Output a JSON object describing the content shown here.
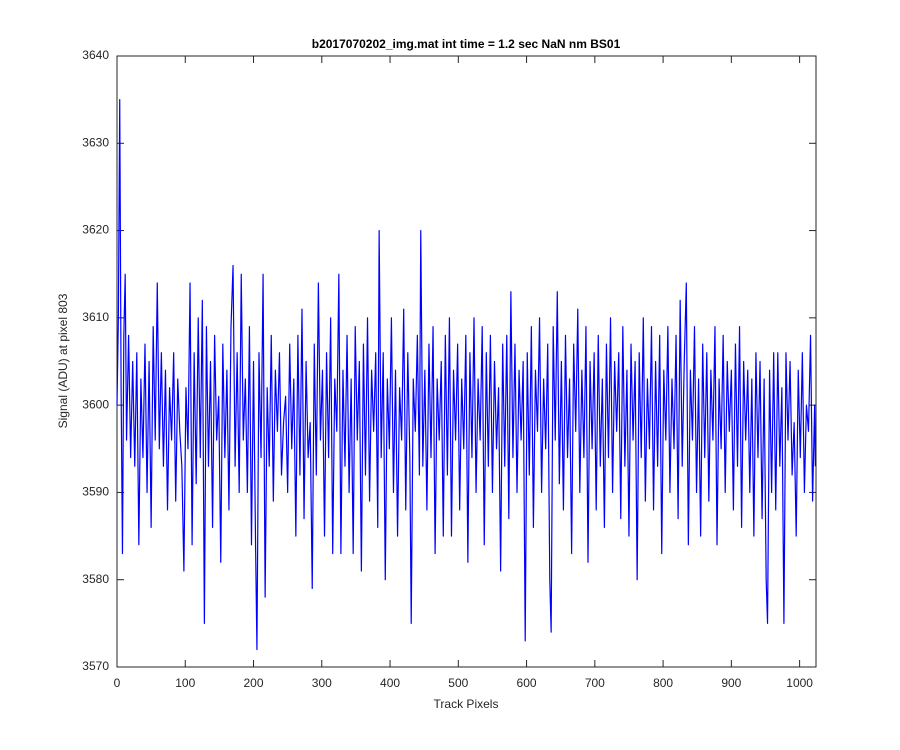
{
  "chart_data": {
    "type": "line",
    "title": "b2017070202_img.mat int time = 1.2 sec  NaN nm BS01",
    "x_label": "Track Pixels",
    "y_label": "Signal (ADU) at pixel 803",
    "xlim": [
      0,
      1024
    ],
    "ylim": [
      3570,
      3640
    ],
    "xticks": [
      0,
      100,
      200,
      300,
      400,
      500,
      600,
      700,
      800,
      900,
      1000
    ],
    "yticks": [
      3570,
      3580,
      3590,
      3600,
      3610,
      3620,
      3630,
      3640
    ],
    "grid": false,
    "series": [
      {
        "color": "#0000ff",
        "x": [
          0,
          2,
          4,
          6,
          8,
          10,
          12,
          14,
          17,
          20,
          23,
          26,
          29,
          32,
          35,
          38,
          41,
          44,
          47,
          50,
          53,
          56,
          59,
          62,
          65,
          68,
          71,
          74,
          77,
          80,
          83,
          86,
          89,
          92,
          95,
          98,
          101,
          104,
          107,
          110,
          113,
          116,
          119,
          122,
          125,
          128,
          131,
          134,
          137,
          140,
          143,
          146,
          149,
          152,
          155,
          158,
          161,
          164,
          167,
          170,
          173,
          176,
          179,
          182,
          185,
          188,
          191,
          194,
          197,
          200,
          203,
          205,
          208,
          211,
          214,
          217,
          220,
          223,
          226,
          229,
          232,
          235,
          238,
          241,
          244,
          247,
          250,
          253,
          256,
          259,
          262,
          265,
          268,
          271,
          274,
          277,
          280,
          283,
          286,
          289,
          292,
          295,
          298,
          301,
          304,
          307,
          310,
          313,
          316,
          319,
          322,
          325,
          328,
          331,
          334,
          337,
          340,
          343,
          346,
          349,
          352,
          355,
          358,
          361,
          364,
          367,
          370,
          373,
          376,
          379,
          382,
          384,
          387,
          390,
          393,
          396,
          399,
          402,
          405,
          408,
          411,
          414,
          417,
          420,
          423,
          426,
          429,
          431,
          434,
          437,
          440,
          443,
          445,
          448,
          451,
          454,
          457,
          460,
          463,
          466,
          469,
          472,
          475,
          478,
          481,
          484,
          487,
          490,
          493,
          496,
          499,
          502,
          505,
          508,
          511,
          514,
          517,
          520,
          523,
          526,
          529,
          532,
          535,
          538,
          541,
          544,
          547,
          550,
          553,
          556,
          559,
          562,
          565,
          568,
          571,
          574,
          577,
          580,
          583,
          586,
          589,
          592,
          595,
          598,
          601,
          604,
          607,
          610,
          613,
          616,
          619,
          622,
          625,
          628,
          631,
          634,
          636,
          639,
          642,
          645,
          648,
          651,
          654,
          657,
          660,
          663,
          666,
          669,
          672,
          675,
          678,
          681,
          684,
          687,
          690,
          693,
          696,
          699,
          702,
          705,
          708,
          711,
          714,
          717,
          720,
          723,
          726,
          729,
          732,
          735,
          738,
          741,
          744,
          747,
          750,
          753,
          756,
          759,
          762,
          765,
          768,
          771,
          774,
          777,
          780,
          783,
          786,
          789,
          792,
          795,
          798,
          801,
          804,
          807,
          810,
          813,
          816,
          819,
          822,
          825,
          828,
          831,
          834,
          837,
          840,
          843,
          846,
          849,
          852,
          855,
          858,
          861,
          864,
          867,
          870,
          873,
          876,
          879,
          882,
          885,
          888,
          891,
          894,
          897,
          900,
          903,
          906,
          909,
          912,
          915,
          918,
          921,
          924,
          927,
          930,
          933,
          936,
          939,
          942,
          945,
          948,
          951,
          953,
          956,
          959,
          962,
          965,
          968,
          971,
          974,
          977,
          980,
          983,
          986,
          989,
          992,
          995,
          998,
          1001,
          1004,
          1007,
          1010,
          1013,
          1016,
          1019,
          1022,
          1023
        ],
        "values": [
          3600,
          3610,
          3635,
          3602,
          3583,
          3608,
          3615,
          3596,
          3608,
          3594,
          3605,
          3593,
          3606,
          3584,
          3603,
          3594,
          3607,
          3590,
          3605,
          3586,
          3609,
          3596,
          3614,
          3595,
          3606,
          3593,
          3604,
          3588,
          3602,
          3596,
          3606,
          3589,
          3603,
          3597,
          3593,
          3581,
          3602,
          3595,
          3614,
          3584,
          3606,
          3591,
          3610,
          3594,
          3612,
          3575,
          3609,
          3593,
          3605,
          3586,
          3608,
          3596,
          3601,
          3582,
          3607,
          3594,
          3604,
          3588,
          3609,
          3616,
          3593,
          3606,
          3590,
          3615,
          3596,
          3603,
          3590,
          3609,
          3584,
          3605,
          3584,
          3572,
          3606,
          3594,
          3615,
          3578,
          3602,
          3593,
          3608,
          3589,
          3604,
          3597,
          3606,
          3592,
          3598,
          3601,
          3590,
          3607,
          3595,
          3603,
          3585,
          3608,
          3592,
          3611,
          3587,
          3605,
          3594,
          3598,
          3579,
          3607,
          3592,
          3614,
          3596,
          3604,
          3585,
          3606,
          3594,
          3610,
          3583,
          3603,
          3597,
          3615,
          3583,
          3604,
          3593,
          3608,
          3590,
          3603,
          3583,
          3609,
          3596,
          3605,
          3581,
          3607,
          3592,
          3610,
          3589,
          3604,
          3597,
          3606,
          3586,
          3620,
          3594,
          3606,
          3580,
          3603,
          3595,
          3610,
          3590,
          3604,
          3585,
          3602,
          3596,
          3611,
          3588,
          3606,
          3594,
          3575,
          3603,
          3597,
          3608,
          3592,
          3620,
          3593,
          3604,
          3588,
          3607,
          3594,
          3609,
          3583,
          3603,
          3596,
          3605,
          3585,
          3608,
          3592,
          3610,
          3585,
          3604,
          3596,
          3607,
          3588,
          3603,
          3595,
          3608,
          3582,
          3606,
          3594,
          3610,
          3590,
          3603,
          3596,
          3609,
          3584,
          3606,
          3593,
          3608,
          3590,
          3605,
          3595,
          3602,
          3581,
          3607,
          3593,
          3608,
          3587,
          3613,
          3594,
          3607,
          3590,
          3604,
          3596,
          3605,
          3573,
          3606,
          3592,
          3609,
          3586,
          3604,
          3597,
          3610,
          3590,
          3603,
          3595,
          3607,
          3580,
          3574,
          3609,
          3596,
          3613,
          3591,
          3605,
          3588,
          3608,
          3594,
          3603,
          3583,
          3607,
          3597,
          3611,
          3590,
          3604,
          3594,
          3609,
          3582,
          3605,
          3595,
          3606,
          3588,
          3608,
          3593,
          3603,
          3586,
          3607,
          3594,
          3610,
          3590,
          3605,
          3597,
          3606,
          3587,
          3609,
          3593,
          3604,
          3585,
          3607,
          3596,
          3605,
          3580,
          3606,
          3594,
          3610,
          3589,
          3603,
          3595,
          3609,
          3588,
          3605,
          3593,
          3608,
          3583,
          3604,
          3596,
          3609,
          3590,
          3603,
          3595,
          3608,
          3587,
          3612,
          3593,
          3605,
          3614,
          3584,
          3604,
          3596,
          3609,
          3590,
          3603,
          3585,
          3607,
          3594,
          3606,
          3589,
          3604,
          3596,
          3609,
          3584,
          3603,
          3595,
          3608,
          3590,
          3605,
          3597,
          3604,
          3588,
          3607,
          3593,
          3609,
          3586,
          3605,
          3596,
          3604,
          3590,
          3603,
          3585,
          3606,
          3594,
          3605,
          3587,
          3603,
          3580,
          3575,
          3604,
          3590,
          3606,
          3588,
          3606,
          3593,
          3602,
          3575,
          3606,
          3596,
          3605,
          3592,
          3598,
          3585,
          3604,
          3594,
          3606,
          3590,
          3600,
          3597,
          3608,
          3589,
          3600,
          3593
        ]
      }
    ]
  }
}
